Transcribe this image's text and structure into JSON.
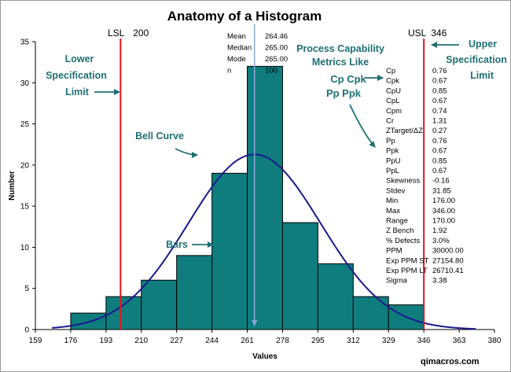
{
  "chart_data": {
    "type": "bar",
    "title": "Anatomy of a Histogram",
    "xlabel": "Values",
    "ylabel": "Number",
    "xlim": [
      159,
      380
    ],
    "ylim": [
      0,
      35
    ],
    "x_ticks": [
      "159",
      "176",
      "193",
      "210",
      "227",
      "244",
      "261",
      "278",
      "295",
      "312",
      "329",
      "346",
      "363",
      "380"
    ],
    "y_ticks": [
      "0",
      "5",
      "10",
      "15",
      "20",
      "25",
      "30",
      "35"
    ],
    "bins": [
      {
        "from": 176,
        "to": 193,
        "count": 2
      },
      {
        "from": 193,
        "to": 210,
        "count": 4
      },
      {
        "from": 210,
        "to": 227,
        "count": 6
      },
      {
        "from": 227,
        "to": 244,
        "count": 9
      },
      {
        "from": 244,
        "to": 261,
        "count": 19
      },
      {
        "from": 261,
        "to": 278,
        "count": 32
      },
      {
        "from": 278,
        "to": 295,
        "count": 13
      },
      {
        "from": 295,
        "to": 312,
        "count": 8
      },
      {
        "from": 312,
        "to": 329,
        "count": 4
      },
      {
        "from": 329,
        "to": 346,
        "count": 3
      }
    ],
    "bell_curve": {
      "mean": 264.46,
      "stdev": 31.85,
      "scale": 1.0
    },
    "lsl": {
      "label": "LSL",
      "value_text": "200",
      "value": 200
    },
    "usl": {
      "label": "USL",
      "value_text": "346",
      "value": 346
    },
    "mean_line": 264.46,
    "summary": [
      {
        "label": "Mean",
        "value": "264.46"
      },
      {
        "label": "Median",
        "value": "265.00"
      },
      {
        "label": "Mode",
        "value": "265.00"
      },
      {
        "label": "n",
        "value": "100"
      }
    ],
    "annotations": {
      "lower_spec": [
        "Lower",
        "Specification",
        "Limit"
      ],
      "upper_spec": [
        "Upper",
        "Specification",
        "Limit"
      ],
      "bell_curve": "Bell Curve",
      "bars": "Bars",
      "process_capability": [
        "Process Capability",
        "Metrics Like"
      ],
      "cp_cpk": "Cp Cpk",
      "pp_ppk": "Pp Ppk"
    },
    "metrics": [
      {
        "label": "Cp",
        "value": "0.76"
      },
      {
        "label": "Cpk",
        "value": "0.67"
      },
      {
        "label": "CpU",
        "value": "0.85"
      },
      {
        "label": "CpL",
        "value": "0.67"
      },
      {
        "label": "Cpm",
        "value": "0.74"
      },
      {
        "label": "Cr",
        "value": "1.31",
        "highlight": true
      },
      {
        "label": "ZTarget/ΔZ",
        "value": "0.27"
      },
      {
        "label": "Pp",
        "value": "0.76"
      },
      {
        "label": "Ppk",
        "value": "0.67"
      },
      {
        "label": "PpU",
        "value": "0.85"
      },
      {
        "label": "PpL",
        "value": "0.67"
      },
      {
        "label": "Skewness",
        "value": "-0.16"
      },
      {
        "label": "Stdev",
        "value": "31.85"
      },
      {
        "label": "Min",
        "value": "176.00"
      },
      {
        "label": "Max",
        "value": "346.00"
      },
      {
        "label": "Range",
        "value": "170.00"
      },
      {
        "label": "Z Bench",
        "value": "1.92"
      },
      {
        "label": "% Defects",
        "value": "3.0%"
      },
      {
        "label": "PPM",
        "value": "30000.00"
      },
      {
        "label": "Exp PPM ST",
        "value": "27154.80"
      },
      {
        "label": "Exp PPM LT",
        "value": "26710.41"
      },
      {
        "label": "Sigma",
        "value": "3.38"
      }
    ],
    "colors": {
      "bar_fill": "#0f7d7e",
      "bar_stroke": "#000000",
      "curve": "#1a1a8c",
      "limit_line": "#e8141c",
      "mean_line": "#8aa8d8",
      "annotation": "#1f6f73",
      "highlight": "#e8141c"
    }
  },
  "footer": "qimacros.com"
}
